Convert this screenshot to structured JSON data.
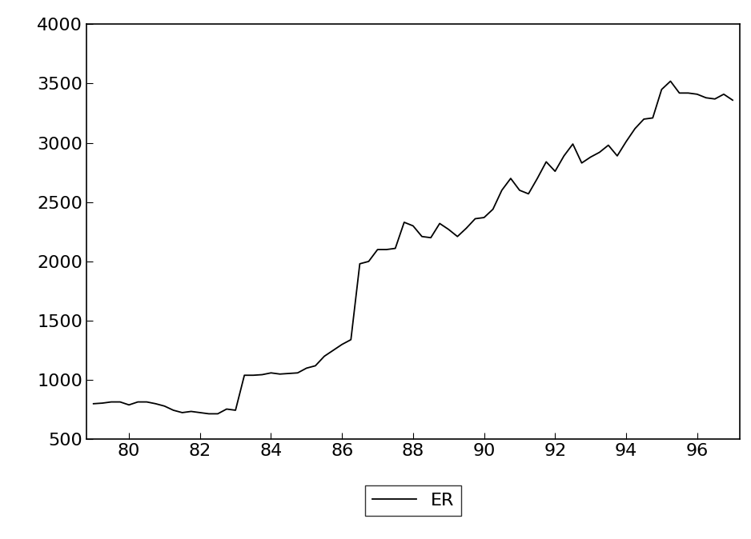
{
  "chart_data": {
    "type": "line",
    "x": [
      79.0,
      79.25,
      79.5,
      79.75,
      80.0,
      80.25,
      80.5,
      80.75,
      81.0,
      81.25,
      81.5,
      81.75,
      82.0,
      82.25,
      82.5,
      82.75,
      83.0,
      83.25,
      83.5,
      83.75,
      84.0,
      84.25,
      84.5,
      84.75,
      85.0,
      85.25,
      85.5,
      85.75,
      86.0,
      86.25,
      86.5,
      86.75,
      87.0,
      87.25,
      87.5,
      87.75,
      88.0,
      88.25,
      88.5,
      88.75,
      89.0,
      89.25,
      89.5,
      89.75,
      90.0,
      90.25,
      90.5,
      90.75,
      91.0,
      91.25,
      91.5,
      91.75,
      92.0,
      92.25,
      92.5,
      92.75,
      93.0,
      93.25,
      93.5,
      93.75,
      94.0,
      94.25,
      94.5,
      94.75,
      95.0,
      95.25,
      95.5,
      95.75,
      96.0,
      96.25,
      96.5,
      96.75,
      97.0
    ],
    "series": [
      {
        "name": "ER",
        "color": "#000000",
        "values": [
          800,
          805,
          815,
          815,
          790,
          815,
          815,
          800,
          780,
          745,
          725,
          735,
          725,
          715,
          715,
          755,
          745,
          1040,
          1040,
          1045,
          1060,
          1050,
          1055,
          1060,
          1100,
          1120,
          1200,
          1250,
          1300,
          1340,
          1980,
          2000,
          2100,
          2100,
          2110,
          2330,
          2300,
          2210,
          2200,
          2320,
          2270,
          2210,
          2280,
          2360,
          2370,
          2440,
          2600,
          2700,
          2600,
          2570,
          2700,
          2840,
          2760,
          2890,
          2990,
          2830,
          2880,
          2920,
          2980,
          2890,
          3010,
          3120,
          3200,
          3210,
          3450,
          3520,
          3420,
          3420,
          3410,
          3380,
          3370,
          3410,
          3360
        ]
      }
    ],
    "xlim": [
      78.8,
      97.2
    ],
    "xticks": [
      80,
      82,
      84,
      86,
      88,
      90,
      92,
      94,
      96
    ],
    "ylim": [
      500,
      4000
    ],
    "yticks": [
      500,
      1000,
      1500,
      2000,
      2500,
      3000,
      3500,
      4000
    ],
    "grid": false,
    "legend": "bottom"
  }
}
